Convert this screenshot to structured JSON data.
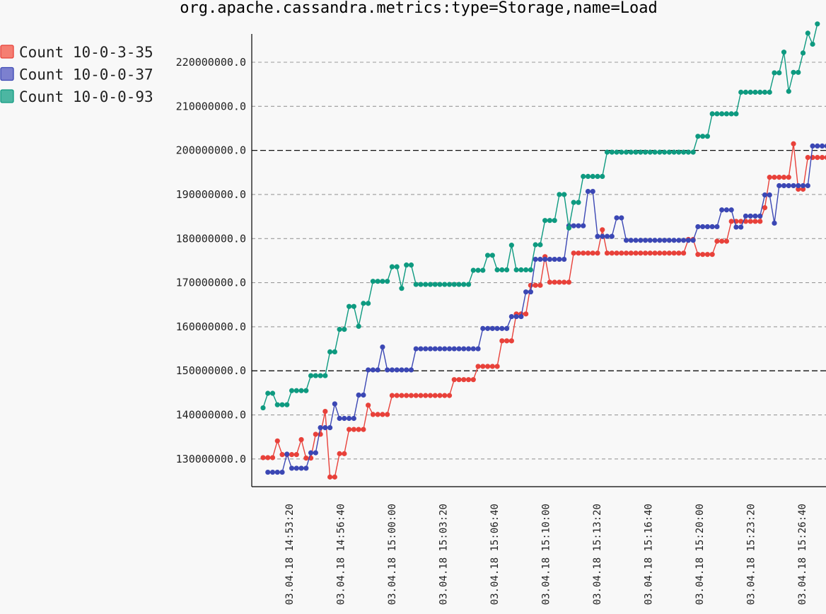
{
  "chart_data": {
    "type": "line",
    "title": "org.apache.cassandra.metrics:type=Storage,name=Load",
    "xlabel": "",
    "ylabel": "",
    "grid": true,
    "legend_position": "top-left",
    "y_ticks": [
      "130000000.0",
      "140000000.0",
      "150000000.0",
      "160000000.0",
      "170000000.0",
      "180000000.0",
      "190000000.0",
      "200000000.0",
      "210000000.0",
      "220000000.0"
    ],
    "y_major_ticks": [
      "150000000.0",
      "200000000.0"
    ],
    "ylim": [
      124000000,
      230000000
    ],
    "x_ticks": [
      "03.04.18 14:53:20",
      "03.04.18 14:56:40",
      "03.04.18 15:00:00",
      "03.04.18 15:03:20",
      "03.04.18 15:06:40",
      "03.04.18 15:10:00",
      "03.04.18 15:13:20",
      "03.04.18 15:16:40",
      "03.04.18 15:20:00",
      "03.04.18 15:23:20",
      "03.04.18 15:26:40"
    ],
    "series": [
      {
        "name": "Count 10-0-3-35",
        "color": "#e8413a",
        "fill": "#f57e72",
        "values": [
          130300000,
          130300000,
          130300000,
          134100000,
          131000000,
          131000000,
          131000000,
          131000000,
          134400000,
          130200000,
          130200000,
          135600000,
          135600000,
          140800000,
          125900000,
          125900000,
          131200000,
          131200000,
          136700000,
          136700000,
          136700000,
          136700000,
          142200000,
          140100000,
          140100000,
          140100000,
          140100000,
          144400000,
          144400000,
          144400000,
          144400000,
          144400000,
          144400000,
          144400000,
          144400000,
          144400000,
          144400000,
          144400000,
          144400000,
          144400000,
          148000000,
          148000000,
          148000000,
          148000000,
          148000000,
          151000000,
          151000000,
          151000000,
          151000000,
          151000000,
          156800000,
          156800000,
          156800000,
          162900000,
          162900000,
          162900000,
          169400000,
          169400000,
          169400000,
          175900000,
          170100000,
          170100000,
          170100000,
          170100000,
          170100000,
          176700000,
          176700000,
          176700000,
          176700000,
          176700000,
          176700000,
          182000000,
          176700000,
          176700000,
          176700000,
          176700000,
          176700000,
          176700000,
          176700000,
          176700000,
          176700000,
          176700000,
          176700000,
          176700000,
          176700000,
          176700000,
          176700000,
          176700000,
          176700000,
          179800000,
          179800000,
          176400000,
          176400000,
          176400000,
          176400000,
          179400000,
          179400000,
          179400000,
          183900000,
          183900000,
          183900000,
          183900000,
          183900000,
          183900000,
          183900000,
          187000000,
          193900000,
          193900000,
          193900000,
          193900000,
          193900000,
          201500000,
          191200000,
          191200000,
          198400000,
          198400000,
          198400000,
          198400000,
          198400000
        ]
      },
      {
        "name": "Count 10-0-0-37",
        "color": "#3b47b4",
        "fill": "#7c80cf",
        "values": [
          null,
          127000000,
          127000000,
          127000000,
          127000000,
          131100000,
          127900000,
          127900000,
          127900000,
          127900000,
          131400000,
          131400000,
          137100000,
          137100000,
          137100000,
          142500000,
          139200000,
          139200000,
          139200000,
          139200000,
          144500000,
          144500000,
          150200000,
          150200000,
          150200000,
          155400000,
          150200000,
          150200000,
          150200000,
          150200000,
          150200000,
          150200000,
          155000000,
          155000000,
          155000000,
          155000000,
          155000000,
          155000000,
          155000000,
          155000000,
          155000000,
          155000000,
          155000000,
          155000000,
          155000000,
          155000000,
          159600000,
          159600000,
          159600000,
          159600000,
          159600000,
          159600000,
          162300000,
          162300000,
          162300000,
          167900000,
          167900000,
          175300000,
          175300000,
          175300000,
          175300000,
          175300000,
          175300000,
          175300000,
          182900000,
          182900000,
          182900000,
          182900000,
          190700000,
          190700000,
          180500000,
          180500000,
          180500000,
          180500000,
          184700000,
          184700000,
          179600000,
          179600000,
          179600000,
          179600000,
          179600000,
          179600000,
          179600000,
          179600000,
          179600000,
          179600000,
          179600000,
          179600000,
          179600000,
          179600000,
          179600000,
          182700000,
          182700000,
          182700000,
          182700000,
          182700000,
          186500000,
          186500000,
          186500000,
          182600000,
          182600000,
          185100000,
          185100000,
          185100000,
          185100000,
          189900000,
          189900000,
          183500000,
          192000000,
          192000000,
          192000000,
          192000000,
          192000000,
          192000000,
          192000000,
          201000000,
          201000000,
          201000000,
          201000000,
          201000000
        ]
      },
      {
        "name": "Count 10-0-0-93",
        "color": "#0e9a80",
        "fill": "#4cb6a2",
        "values": [
          141600000,
          144900000,
          144900000,
          142300000,
          142300000,
          142300000,
          145500000,
          145500000,
          145500000,
          145500000,
          148900000,
          148900000,
          148900000,
          148900000,
          154300000,
          154300000,
          159400000,
          159400000,
          164600000,
          164600000,
          160100000,
          165300000,
          165300000,
          170300000,
          170300000,
          170300000,
          170300000,
          173600000,
          173600000,
          168700000,
          174000000,
          174000000,
          169600000,
          169600000,
          169600000,
          169600000,
          169600000,
          169600000,
          169600000,
          169600000,
          169600000,
          169600000,
          169600000,
          169600000,
          172800000,
          172800000,
          172800000,
          176200000,
          176200000,
          172900000,
          172900000,
          172900000,
          178500000,
          172900000,
          172900000,
          172900000,
          172900000,
          178600000,
          178600000,
          184100000,
          184100000,
          184100000,
          190000000,
          190000000,
          182400000,
          188200000,
          188200000,
          194100000,
          194100000,
          194100000,
          194100000,
          194100000,
          199600000,
          199600000,
          199600000,
          199600000,
          199600000,
          199600000,
          199600000,
          199600000,
          199600000,
          199600000,
          199600000,
          199600000,
          199600000,
          199600000,
          199600000,
          199600000,
          199600000,
          199600000,
          199600000,
          203200000,
          203200000,
          203200000,
          208300000,
          208300000,
          208300000,
          208300000,
          208300000,
          208300000,
          213200000,
          213200000,
          213200000,
          213200000,
          213200000,
          213200000,
          213200000,
          217600000,
          217600000,
          222300000,
          213400000,
          217700000,
          217700000,
          222100000,
          226600000,
          224100000,
          228700000
        ]
      }
    ]
  }
}
